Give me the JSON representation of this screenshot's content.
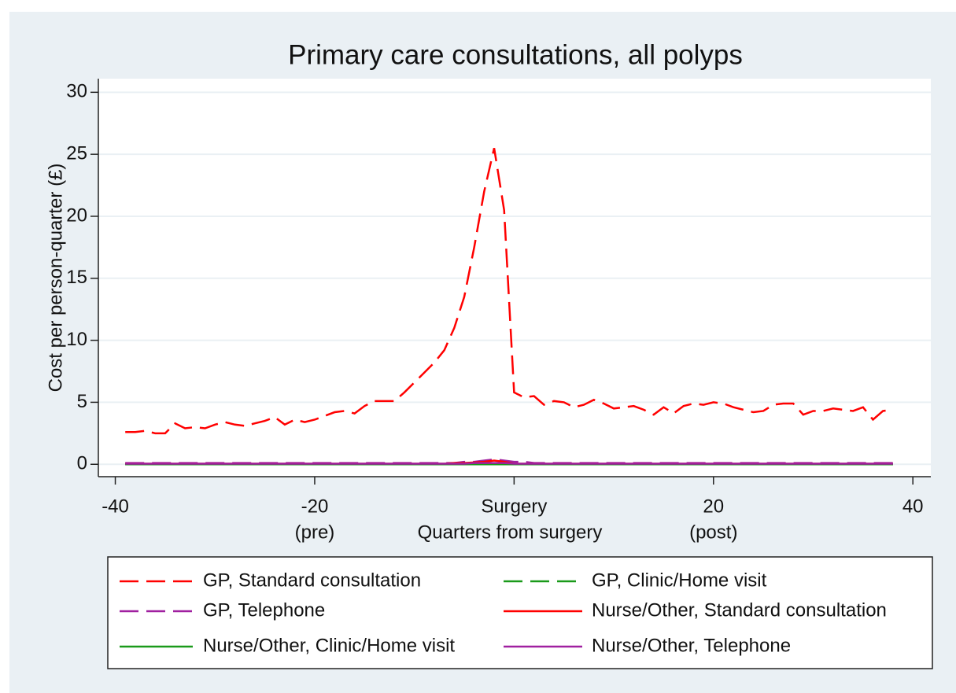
{
  "chart_data": {
    "type": "line",
    "title": "Primary care consultations, all polyps",
    "y_label": "Cost per person-quarter (£)",
    "x_label": "Quarters from surgery",
    "x": [
      -39,
      -38,
      -37,
      -36,
      -35,
      -34,
      -33,
      -32,
      -31,
      -30,
      -29,
      -28,
      -27,
      -26,
      -25,
      -24,
      -23,
      -22,
      -21,
      -20,
      -19,
      -18,
      -17,
      -16,
      -15,
      -14,
      -13,
      -12,
      -11,
      -10,
      -9,
      -8,
      -7,
      -6,
      -5,
      -4,
      -3,
      -2,
      -1,
      0,
      1,
      2,
      3,
      4,
      5,
      6,
      7,
      8,
      9,
      10,
      11,
      12,
      13,
      14,
      15,
      16,
      17,
      18,
      19,
      20,
      21,
      22,
      23,
      24,
      25,
      26,
      27,
      28,
      29,
      30,
      31,
      32,
      33,
      34,
      35,
      36,
      37,
      38
    ],
    "series": [
      {
        "name": "GP, Standard consultation",
        "color": "#ff0000",
        "style": "dash",
        "values": [
          2.6,
          2.6,
          2.7,
          2.5,
          2.5,
          3.3,
          2.9,
          3.0,
          2.9,
          3.2,
          3.4,
          3.2,
          3.1,
          3.3,
          3.5,
          3.8,
          3.2,
          3.6,
          3.4,
          3.6,
          3.9,
          4.2,
          4.3,
          4.1,
          4.7,
          5.1,
          5.1,
          5.1,
          5.8,
          6.6,
          7.4,
          8.2,
          9.2,
          11.0,
          13.5,
          17.5,
          22.0,
          25.5,
          20.5,
          5.8,
          5.4,
          5.5,
          4.8,
          5.1,
          5.0,
          4.6,
          4.8,
          5.2,
          4.9,
          4.5,
          4.6,
          4.7,
          4.4,
          4.0,
          4.6,
          4.1,
          4.7,
          4.9,
          4.8,
          5.0,
          4.9,
          4.6,
          4.4,
          4.2,
          4.3,
          4.8,
          4.9,
          4.9,
          4.0,
          4.3,
          4.3,
          4.5,
          4.4,
          4.3,
          4.6,
          3.6,
          4.3,
          4.4
        ]
      },
      {
        "name": "GP, Clinic/Home visit",
        "color": "#1a9a1a",
        "style": "dash",
        "values": [
          0,
          0,
          0,
          0,
          0,
          0,
          0,
          0,
          0,
          0,
          0,
          0,
          0,
          0,
          0,
          0,
          0,
          0,
          0,
          0,
          0,
          0,
          0,
          0,
          0,
          0,
          0,
          0,
          0,
          0,
          0,
          0,
          0,
          0,
          0,
          0,
          0.1,
          0.1,
          0.1,
          0,
          0,
          0,
          0,
          0,
          0,
          0,
          0,
          0,
          0,
          0,
          0,
          0,
          0,
          0,
          0,
          0,
          0,
          0,
          0,
          0,
          0,
          0,
          0,
          0,
          0,
          0,
          0,
          0,
          0,
          0,
          0,
          0,
          0,
          0,
          0,
          0,
          0,
          0
        ]
      },
      {
        "name": "GP, Telephone",
        "color": "#a020a0",
        "style": "dash",
        "values": [
          0.1,
          0.1,
          0.1,
          0.1,
          0.1,
          0.1,
          0.1,
          0.1,
          0.1,
          0.1,
          0.1,
          0.1,
          0.1,
          0.1,
          0.1,
          0.1,
          0.1,
          0.1,
          0.1,
          0.1,
          0.1,
          0.1,
          0.1,
          0.1,
          0.1,
          0.1,
          0.1,
          0.1,
          0.1,
          0.1,
          0.1,
          0.1,
          0.1,
          0.1,
          0.2,
          0.2,
          0.3,
          0.4,
          0.3,
          0.2,
          0.2,
          0.1,
          0.1,
          0.1,
          0.1,
          0.1,
          0.1,
          0.1,
          0.1,
          0.1,
          0.1,
          0.1,
          0.1,
          0.1,
          0.1,
          0.1,
          0.1,
          0.1,
          0.1,
          0.1,
          0.1,
          0.1,
          0.1,
          0.1,
          0.1,
          0.1,
          0.1,
          0.1,
          0.1,
          0.1,
          0.1,
          0.1,
          0.1,
          0.1,
          0.1,
          0.1,
          0.1,
          0.1
        ]
      },
      {
        "name": "Nurse/Other, Standard consultation",
        "color": "#ff0000",
        "style": "solid",
        "values": [
          0.05,
          0.05,
          0.05,
          0.05,
          0.05,
          0.05,
          0.05,
          0.05,
          0.05,
          0.05,
          0.05,
          0.05,
          0.05,
          0.05,
          0.05,
          0.05,
          0.05,
          0.05,
          0.05,
          0.05,
          0.05,
          0.05,
          0.05,
          0.05,
          0.05,
          0.05,
          0.05,
          0.05,
          0.05,
          0.05,
          0.05,
          0.05,
          0.05,
          0.1,
          0.1,
          0.15,
          0.2,
          0.3,
          0.2,
          0.05,
          0.05,
          0.05,
          0.05,
          0.05,
          0.05,
          0.05,
          0.05,
          0.05,
          0.05,
          0.05,
          0.05,
          0.05,
          0.05,
          0.05,
          0.05,
          0.05,
          0.05,
          0.05,
          0.05,
          0.05,
          0.05,
          0.05,
          0.05,
          0.05,
          0.05,
          0.05,
          0.05,
          0.05,
          0.05,
          0.05,
          0.05,
          0.05,
          0.05,
          0.05,
          0.05,
          0.05,
          0.05,
          0.05
        ]
      },
      {
        "name": "Nurse/Other, Clinic/Home visit",
        "color": "#1a9a1a",
        "style": "solid",
        "values": [
          0,
          0,
          0,
          0,
          0,
          0,
          0,
          0,
          0,
          0,
          0,
          0,
          0,
          0,
          0,
          0,
          0,
          0,
          0,
          0,
          0,
          0,
          0,
          0,
          0,
          0,
          0,
          0,
          0,
          0,
          0,
          0,
          0,
          0,
          0,
          0,
          0,
          0,
          0,
          0,
          0,
          0,
          0,
          0,
          0,
          0,
          0,
          0,
          0,
          0,
          0,
          0,
          0,
          0,
          0,
          0,
          0,
          0,
          0,
          0,
          0,
          0,
          0,
          0,
          0,
          0,
          0,
          0,
          0,
          0,
          0,
          0,
          0,
          0,
          0,
          0,
          0,
          0
        ]
      },
      {
        "name": "Nurse/Other, Telephone",
        "color": "#a020a0",
        "style": "solid",
        "values": [
          0.05,
          0.05,
          0.05,
          0.05,
          0.05,
          0.05,
          0.05,
          0.05,
          0.05,
          0.05,
          0.05,
          0.05,
          0.05,
          0.05,
          0.05,
          0.05,
          0.05,
          0.05,
          0.05,
          0.05,
          0.05,
          0.05,
          0.05,
          0.05,
          0.05,
          0.05,
          0.05,
          0.05,
          0.05,
          0.05,
          0.05,
          0.05,
          0.05,
          0.05,
          0.05,
          0.1,
          0.1,
          0.1,
          0.1,
          0.05,
          0.05,
          0.05,
          0.05,
          0.05,
          0.05,
          0.05,
          0.05,
          0.05,
          0.05,
          0.05,
          0.05,
          0.05,
          0.05,
          0.05,
          0.05,
          0.05,
          0.05,
          0.05,
          0.05,
          0.05,
          0.05,
          0.05,
          0.05,
          0.05,
          0.05,
          0.05,
          0.05,
          0.05,
          0.05,
          0.05,
          0.05,
          0.05,
          0.05,
          0.05,
          0.05,
          0.05,
          0.05,
          0.05
        ]
      }
    ],
    "xlim": [
      -41.7,
      41.8
    ],
    "ylim": [
      -1,
      31.1
    ],
    "xticks": [
      -40,
      {
        "value": -20,
        "label": "-20",
        "sublabel": "(pre)"
      },
      {
        "value": 0,
        "label": "Surgery"
      },
      {
        "value": 20,
        "label": "20",
        "sublabel": "(post)"
      },
      40
    ],
    "yticks": [
      0,
      5,
      10,
      15,
      20,
      25,
      30
    ],
    "grid": true,
    "legend": "bottom"
  }
}
